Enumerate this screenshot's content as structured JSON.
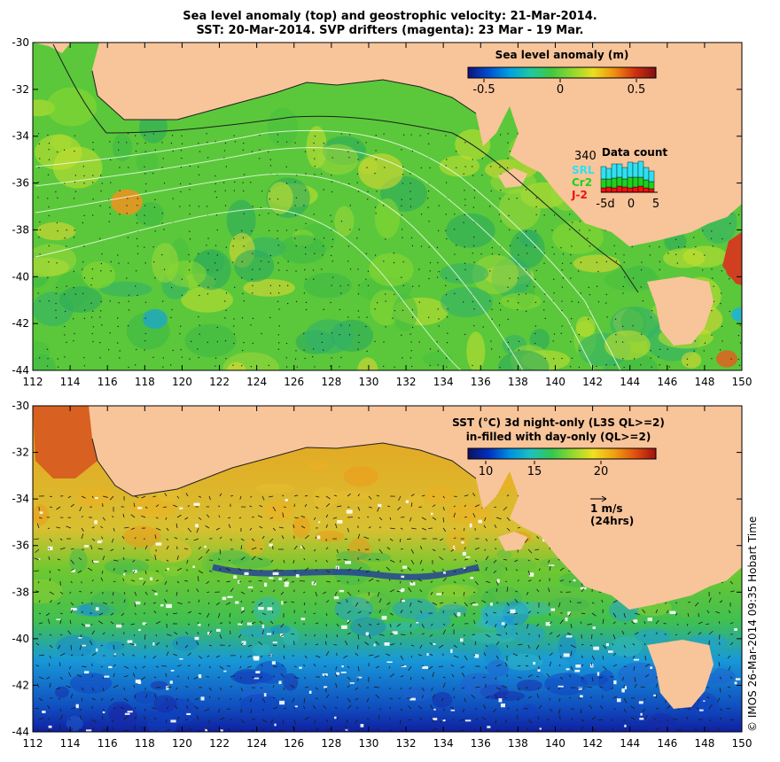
{
  "header": {
    "line1": "Sea level anomaly (top) and geostrophic velocity: 21-Mar-2014.",
    "line2": "SST: 20-Mar-2014. SVP drifters (magenta): 23 Mar - 19 Mar."
  },
  "axes": {
    "x_ticks": [
      "112",
      "114",
      "116",
      "118",
      "120",
      "122",
      "124",
      "126",
      "128",
      "130",
      "132",
      "134",
      "136",
      "138",
      "140",
      "142",
      "144",
      "146",
      "148",
      "150"
    ],
    "y_ticks": [
      "-30",
      "-32",
      "-34",
      "-36",
      "-38",
      "-40",
      "-42",
      "-44"
    ],
    "lon_range": [
      112,
      150
    ],
    "lat_range": [
      -44,
      -30
    ]
  },
  "top_panel": {
    "colorbar_title": "Sea level anomaly (m)",
    "colorbar_ticks": [
      "-0.5",
      "0",
      "0.5"
    ],
    "colorbar_colors": [
      "#101080",
      "#0050d0",
      "#00a0e0",
      "#20c8a0",
      "#40c840",
      "#90d830",
      "#e8e020",
      "#f09010",
      "#d03010",
      "#801010"
    ],
    "data_count": {
      "title": "Data count",
      "max_label": "340",
      "series": [
        {
          "name": "SRL",
          "color": "#30e0f0"
        },
        {
          "name": "Cr2",
          "color": "#20d020"
        },
        {
          "name": "J-2",
          "color": "#f01010"
        }
      ],
      "x_ticks": [
        "-5d",
        "0",
        "5"
      ]
    }
  },
  "bottom_panel": {
    "colorbar_title_line1": "SST (°C)  3d night-only (L3S QL>=2)",
    "colorbar_title_line2": "in-filled with day-only (QL>=2)",
    "colorbar_ticks": [
      "10",
      "15",
      "20"
    ],
    "colorbar_colors": [
      "#101060",
      "#0030c0",
      "#0090e0",
      "#20c0c0",
      "#30c850",
      "#90d830",
      "#f0e020",
      "#f0a010",
      "#e05010",
      "#a01010"
    ],
    "velocity_scale": {
      "line1": "1 m/s",
      "line2": "(24hrs)"
    }
  },
  "credit": "© IMOS 26-Mar-2014 09:35 Hobart Time",
  "colors": {
    "land": "#f8c49a",
    "sla_base": "#5ac83a",
    "sst_warm": "#e8a020",
    "sst_mid": "#70c830",
    "sst_cool": "#1890d8",
    "sst_cold": "#1020a0"
  }
}
